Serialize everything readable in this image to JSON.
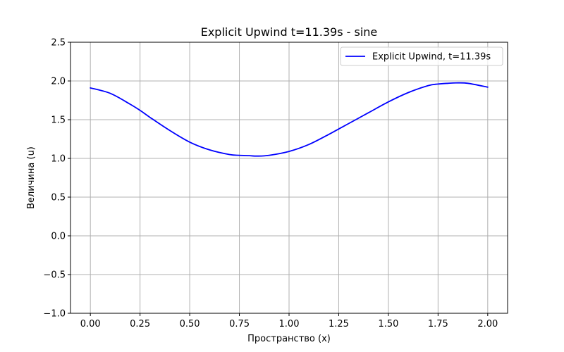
{
  "chart_data": {
    "type": "line",
    "title": "Explicit Upwind t=11.39s - sine",
    "xlabel": "Пространство (x)",
    "ylabel": "Величина (u)",
    "xlim": [
      -0.1,
      2.1
    ],
    "ylim": [
      -1.0,
      2.5
    ],
    "xticks": [
      0.0,
      0.25,
      0.5,
      0.75,
      1.0,
      1.25,
      1.5,
      1.75,
      2.0
    ],
    "xtick_labels": [
      "0.00",
      "0.25",
      "0.50",
      "0.75",
      "1.00",
      "1.25",
      "1.50",
      "1.75",
      "2.00"
    ],
    "yticks": [
      -1.0,
      -0.5,
      0.0,
      0.5,
      1.0,
      1.5,
      2.0,
      2.5
    ],
    "ytick_labels": [
      "−1.0",
      "−0.5",
      "0.0",
      "0.5",
      "1.0",
      "1.5",
      "2.0",
      "2.5"
    ],
    "grid": true,
    "legend_position": "top-right",
    "series": [
      {
        "name": "Explicit Upwind, t=11.39s",
        "color": "#0000ff",
        "x": [
          0.0,
          0.1,
          0.2,
          0.25,
          0.3,
          0.4,
          0.5,
          0.6,
          0.7,
          0.75,
          0.8,
          0.84,
          0.9,
          1.0,
          1.1,
          1.2,
          1.25,
          1.3,
          1.4,
          1.5,
          1.6,
          1.7,
          1.75,
          1.8,
          1.84,
          1.9,
          2.0
        ],
        "y": [
          1.91,
          1.84,
          1.7,
          1.62,
          1.53,
          1.36,
          1.21,
          1.11,
          1.05,
          1.04,
          1.035,
          1.03,
          1.04,
          1.09,
          1.18,
          1.31,
          1.38,
          1.45,
          1.59,
          1.73,
          1.85,
          1.94,
          1.96,
          1.97,
          1.975,
          1.97,
          1.92
        ]
      }
    ]
  }
}
